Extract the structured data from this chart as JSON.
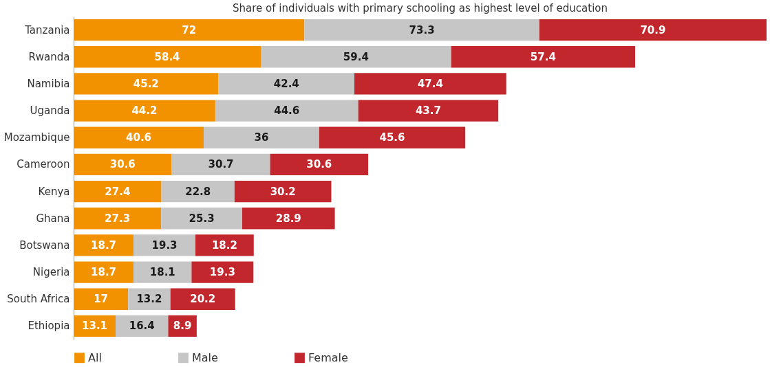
{
  "chart_data": {
    "type": "bar",
    "orientation": "horizontal",
    "stacked": true,
    "data_labels": true,
    "legend": "bottom",
    "title": "Share of individuals with primary schooling as highest level of education",
    "categories": [
      "Tanzania",
      "Rwanda",
      "Namibia",
      "Uganda",
      "Mozambique",
      "Cameroon",
      "Kenya",
      "Ghana",
      "Botswana",
      "Nigeria",
      "South Africa",
      "Ethiopia"
    ],
    "series": [
      {
        "name": "All",
        "color": "#f39200",
        "values": [
          72,
          58.4,
          45.2,
          44.2,
          40.6,
          30.6,
          27.4,
          27.3,
          18.7,
          18.7,
          17,
          13.1
        ]
      },
      {
        "name": "Male",
        "color": "#c6c6c6",
        "values": [
          73.3,
          59.4,
          42.4,
          44.6,
          36,
          30.7,
          22.8,
          25.3,
          19.3,
          18.1,
          13.2,
          16.4
        ]
      },
      {
        "name": "Female",
        "color": "#c1272d",
        "values": [
          70.9,
          57.4,
          47.4,
          43.7,
          45.6,
          30.6,
          30.2,
          28.9,
          18.2,
          19.3,
          20.2,
          8.9
        ]
      }
    ]
  }
}
